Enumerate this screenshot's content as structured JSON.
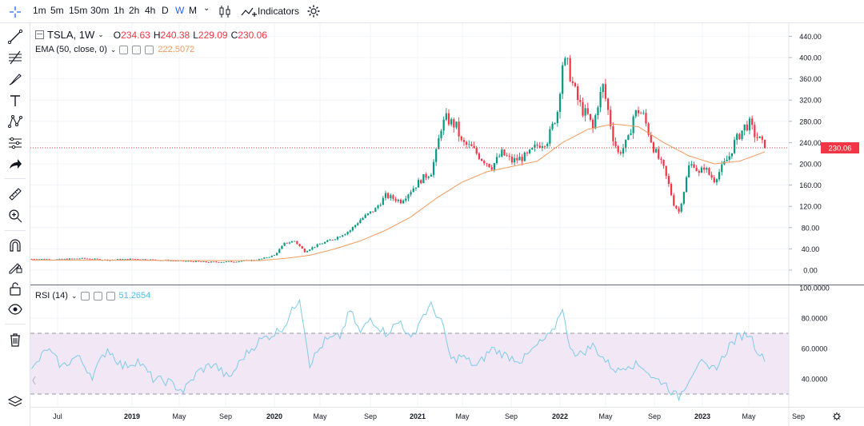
{
  "toolbar": {
    "timeframes": [
      "1m",
      "5m",
      "15m",
      "30m",
      "1h",
      "2h",
      "4h",
      "D",
      "W",
      "M"
    ],
    "active_timeframe": "W",
    "indicators_label": "Indicators"
  },
  "left_tools": [
    "crosshair-icon",
    "trendline-icon",
    "fib-icon",
    "brush-icon",
    "text-icon",
    "pattern-icon",
    "forecast-icon",
    "arrow-icon",
    "ruler-icon",
    "zoom-icon",
    "magnet-icon",
    "lock-drawing-icon",
    "lock-icon",
    "eye-icon",
    "trash-icon",
    "layers-icon"
  ],
  "main_legend": {
    "symbol": "TSLA, 1W",
    "open_label": "O",
    "open": "234.63",
    "high_label": "H",
    "high": "240.38",
    "low_label": "L",
    "low": "229.09",
    "close_label": "C",
    "close": "230.06"
  },
  "ema_legend": {
    "label": "EMA (50, close, 0)",
    "value": "222.5072"
  },
  "rsi_legend": {
    "label": "RSI (14)",
    "value": "51.2654"
  },
  "last_price_label": "230.06",
  "colors": {
    "up": "#089981",
    "down": "#f23645",
    "ema": "#f59a5c",
    "rsi": "#7ecbe8",
    "rsi_band": "#f2e7f5",
    "accent": "#2962ff"
  },
  "chart_data": [
    {
      "type": "candlestick",
      "title": "TSLA, 1W",
      "ylim": [
        -10,
        450
      ],
      "y_ticks": [
        "0.00",
        "40.00",
        "80.00",
        "120.00",
        "160.00",
        "200.00",
        "240.00",
        "280.00",
        "320.00",
        "360.00",
        "400.00",
        "440.00"
      ],
      "x_ticks": [
        "Jul",
        "2019",
        "May",
        "Sep",
        "2020",
        "May",
        "Sep",
        "2021",
        "May",
        "Sep",
        "2022",
        "May",
        "Sep",
        "2023",
        "May",
        "Sep"
      ],
      "last_close": 230.06,
      "price_path": [
        [
          0,
          21
        ],
        [
          10,
          20
        ],
        [
          20,
          22
        ],
        [
          30,
          19
        ],
        [
          40,
          21
        ],
        [
          50,
          19
        ],
        [
          60,
          17
        ],
        [
          70,
          15
        ],
        [
          80,
          16
        ],
        [
          90,
          20
        ],
        [
          96,
          28
        ],
        [
          100,
          50
        ],
        [
          104,
          55
        ],
        [
          108,
          35
        ],
        [
          112,
          45
        ],
        [
          120,
          60
        ],
        [
          126,
          75
        ],
        [
          130,
          95
        ],
        [
          136,
          115
        ],
        [
          140,
          140
        ],
        [
          146,
          130
        ],
        [
          150,
          150
        ],
        [
          154,
          170
        ],
        [
          158,
          185
        ],
        [
          160,
          220
        ],
        [
          162,
          270
        ],
        [
          164,
          285
        ],
        [
          168,
          270
        ],
        [
          170,
          240
        ],
        [
          174,
          230
        ],
        [
          178,
          210
        ],
        [
          182,
          195
        ],
        [
          186,
          220
        ],
        [
          190,
          205
        ],
        [
          196,
          215
        ],
        [
          200,
          235
        ],
        [
          204,
          245
        ],
        [
          206,
          270
        ],
        [
          208,
          300
        ],
        [
          210,
          390
        ],
        [
          212,
          385
        ],
        [
          214,
          350
        ],
        [
          216,
          320
        ],
        [
          218,
          300
        ],
        [
          220,
          290
        ],
        [
          222,
          265
        ],
        [
          224,
          315
        ],
        [
          226,
          345
        ],
        [
          228,
          300
        ],
        [
          230,
          250
        ],
        [
          232,
          220
        ],
        [
          234,
          230
        ],
        [
          236,
          245
        ],
        [
          238,
          290
        ],
        [
          240,
          300
        ],
        [
          242,
          290
        ],
        [
          244,
          260
        ],
        [
          246,
          230
        ],
        [
          248,
          210
        ],
        [
          250,
          190
        ],
        [
          252,
          160
        ],
        [
          254,
          125
        ],
        [
          256,
          110
        ],
        [
          258,
          150
        ],
        [
          260,
          195
        ],
        [
          262,
          200
        ],
        [
          264,
          180
        ],
        [
          266,
          195
        ],
        [
          268,
          180
        ],
        [
          270,
          170
        ],
        [
          272,
          185
        ],
        [
          274,
          200
        ],
        [
          276,
          215
        ],
        [
          278,
          240
        ],
        [
          280,
          255
        ],
        [
          282,
          270
        ],
        [
          284,
          275
        ],
        [
          286,
          255
        ],
        [
          288,
          245
        ],
        [
          290,
          230
        ]
      ],
      "ema_path": [
        [
          0,
          19
        ],
        [
          30,
          19
        ],
        [
          60,
          18
        ],
        [
          90,
          18
        ],
        [
          100,
          22
        ],
        [
          110,
          28
        ],
        [
          120,
          40
        ],
        [
          130,
          55
        ],
        [
          140,
          75
        ],
        [
          150,
          100
        ],
        [
          160,
          135
        ],
        [
          170,
          165
        ],
        [
          180,
          185
        ],
        [
          190,
          195
        ],
        [
          200,
          205
        ],
        [
          210,
          240
        ],
        [
          220,
          265
        ],
        [
          230,
          275
        ],
        [
          240,
          270
        ],
        [
          250,
          240
        ],
        [
          260,
          215
        ],
        [
          270,
          200
        ],
        [
          280,
          205
        ],
        [
          290,
          222.5
        ]
      ]
    },
    {
      "type": "line",
      "title": "RSI (14)",
      "ylim": [
        20,
        100
      ],
      "y_ticks": [
        "40.0000",
        "60.0000",
        "80.0000",
        "100.0000"
      ],
      "bands": [
        30,
        70
      ],
      "last_value": 51.2654,
      "rsi_path": [
        [
          0,
          45
        ],
        [
          6,
          60
        ],
        [
          12,
          48
        ],
        [
          18,
          55
        ],
        [
          24,
          42
        ],
        [
          30,
          60
        ],
        [
          36,
          48
        ],
        [
          42,
          52
        ],
        [
          48,
          40
        ],
        [
          54,
          38
        ],
        [
          60,
          32
        ],
        [
          66,
          45
        ],
        [
          72,
          50
        ],
        [
          78,
          40
        ],
        [
          84,
          55
        ],
        [
          90,
          65
        ],
        [
          96,
          70
        ],
        [
          100,
          75
        ],
        [
          106,
          94
        ],
        [
          110,
          50
        ],
        [
          116,
          65
        ],
        [
          122,
          68
        ],
        [
          126,
          85
        ],
        [
          130,
          70
        ],
        [
          134,
          80
        ],
        [
          140,
          70
        ],
        [
          146,
          78
        ],
        [
          150,
          65
        ],
        [
          154,
          80
        ],
        [
          158,
          88
        ],
        [
          162,
          78
        ],
        [
          166,
          52
        ],
        [
          170,
          55
        ],
        [
          176,
          48
        ],
        [
          182,
          60
        ],
        [
          188,
          55
        ],
        [
          194,
          52
        ],
        [
          200,
          62
        ],
        [
          206,
          70
        ],
        [
          210,
          88
        ],
        [
          212,
          65
        ],
        [
          216,
          55
        ],
        [
          222,
          62
        ],
        [
          228,
          50
        ],
        [
          232,
          45
        ],
        [
          236,
          50
        ],
        [
          242,
          48
        ],
        [
          246,
          40
        ],
        [
          250,
          38
        ],
        [
          254,
          30
        ],
        [
          256,
          28
        ],
        [
          260,
          40
        ],
        [
          264,
          52
        ],
        [
          268,
          45
        ],
        [
          272,
          50
        ],
        [
          276,
          62
        ],
        [
          280,
          68
        ],
        [
          284,
          70
        ],
        [
          286,
          62
        ],
        [
          290,
          51.27
        ]
      ]
    }
  ]
}
